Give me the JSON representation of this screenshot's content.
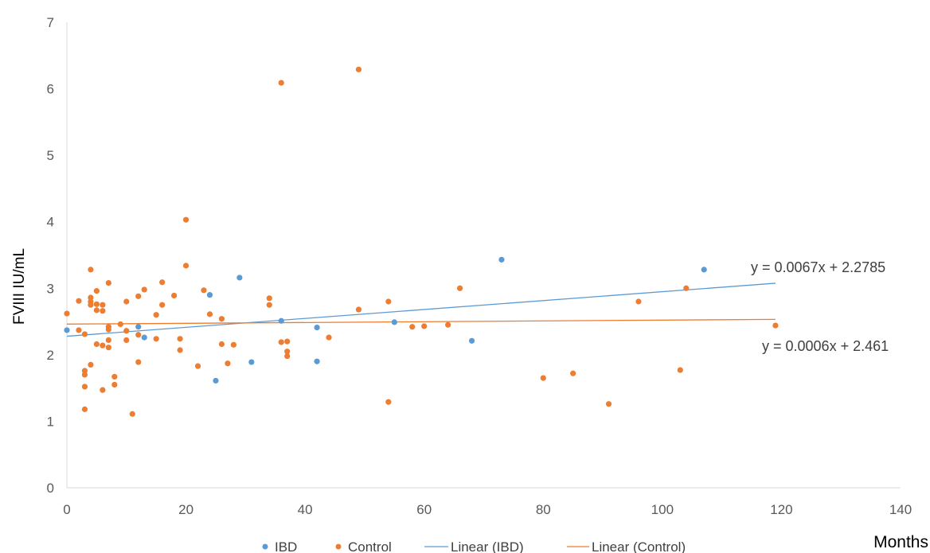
{
  "chart_data": {
    "type": "scatter",
    "title": "",
    "xlabel": "Months",
    "ylabel": "FVIII IU/mL",
    "xlim": [
      0,
      140
    ],
    "ylim": [
      0,
      7
    ],
    "xticks": [
      0,
      20,
      40,
      60,
      80,
      100,
      120,
      140
    ],
    "yticks": [
      0,
      1,
      2,
      3,
      4,
      5,
      6,
      7
    ],
    "grid": false,
    "legend_position": "bottom",
    "series": [
      {
        "name": "IBD",
        "color": "#5b9bd5",
        "points": [
          [
            0,
            2.37
          ],
          [
            12,
            2.42
          ],
          [
            13,
            2.26
          ],
          [
            24,
            2.9
          ],
          [
            25,
            1.61
          ],
          [
            29,
            3.16
          ],
          [
            31,
            1.89
          ],
          [
            36,
            2.51
          ],
          [
            42,
            2.41
          ],
          [
            42,
            1.9
          ],
          [
            55,
            2.49
          ],
          [
            68,
            2.21
          ],
          [
            73,
            3.43
          ],
          [
            107,
            3.28
          ]
        ]
      },
      {
        "name": "Control",
        "color": "#ed7d31",
        "points": [
          [
            0,
            2.62
          ],
          [
            2,
            2.81
          ],
          [
            2,
            2.37
          ],
          [
            3,
            2.31
          ],
          [
            3,
            1.76
          ],
          [
            3,
            1.7
          ],
          [
            3,
            1.52
          ],
          [
            3,
            1.18
          ],
          [
            4,
            3.28
          ],
          [
            4,
            2.86
          ],
          [
            4,
            2.8
          ],
          [
            4,
            2.75
          ],
          [
            4,
            1.85
          ],
          [
            5,
            2.96
          ],
          [
            5,
            2.76
          ],
          [
            5,
            2.67
          ],
          [
            5,
            2.16
          ],
          [
            6,
            2.75
          ],
          [
            6,
            2.66
          ],
          [
            6,
            2.14
          ],
          [
            6,
            1.47
          ],
          [
            7,
            3.08
          ],
          [
            7,
            2.42
          ],
          [
            7,
            2.38
          ],
          [
            7,
            2.22
          ],
          [
            7,
            2.11
          ],
          [
            8,
            1.67
          ],
          [
            8,
            1.55
          ],
          [
            9,
            2.46
          ],
          [
            10,
            2.8
          ],
          [
            10,
            2.36
          ],
          [
            10,
            2.22
          ],
          [
            11,
            1.11
          ],
          [
            12,
            2.88
          ],
          [
            12,
            2.3
          ],
          [
            12,
            1.89
          ],
          [
            13,
            2.98
          ],
          [
            15,
            2.6
          ],
          [
            15,
            2.24
          ],
          [
            16,
            3.09
          ],
          [
            16,
            2.75
          ],
          [
            18,
            2.89
          ],
          [
            19,
            2.24
          ],
          [
            19,
            2.07
          ],
          [
            20,
            4.03
          ],
          [
            20,
            3.34
          ],
          [
            22,
            1.83
          ],
          [
            23,
            2.97
          ],
          [
            24,
            2.61
          ],
          [
            26,
            2.54
          ],
          [
            26,
            2.16
          ],
          [
            27,
            1.87
          ],
          [
            28,
            2.15
          ],
          [
            34,
            2.85
          ],
          [
            34,
            2.75
          ],
          [
            36,
            6.09
          ],
          [
            36,
            2.19
          ],
          [
            37,
            2.2
          ],
          [
            37,
            2.05
          ],
          [
            37,
            1.98
          ],
          [
            44,
            2.26
          ],
          [
            49,
            6.29
          ],
          [
            49,
            2.68
          ],
          [
            54,
            2.8
          ],
          [
            54,
            1.29
          ],
          [
            58,
            2.42
          ],
          [
            60,
            2.43
          ],
          [
            64,
            2.45
          ],
          [
            66,
            3.0
          ],
          [
            80,
            1.65
          ],
          [
            85,
            1.72
          ],
          [
            91,
            1.26
          ],
          [
            96,
            2.8
          ],
          [
            103,
            1.77
          ],
          [
            104,
            3.0
          ],
          [
            119,
            2.44
          ]
        ]
      }
    ],
    "trendlines": [
      {
        "name": "Linear (IBD)",
        "series": "IBD",
        "slope": 0.0067,
        "intercept": 2.2785,
        "x_range": [
          0,
          119
        ],
        "equation": "y = 0.0067x + 2.2785",
        "color": "#5b9bd5"
      },
      {
        "name": "Linear (Control)",
        "series": "Control",
        "slope": 0.0006,
        "intercept": 2.461,
        "x_range": [
          0,
          119
        ],
        "equation": "y = 0.0006x + 2.461",
        "color": "#ed7d31"
      }
    ]
  }
}
